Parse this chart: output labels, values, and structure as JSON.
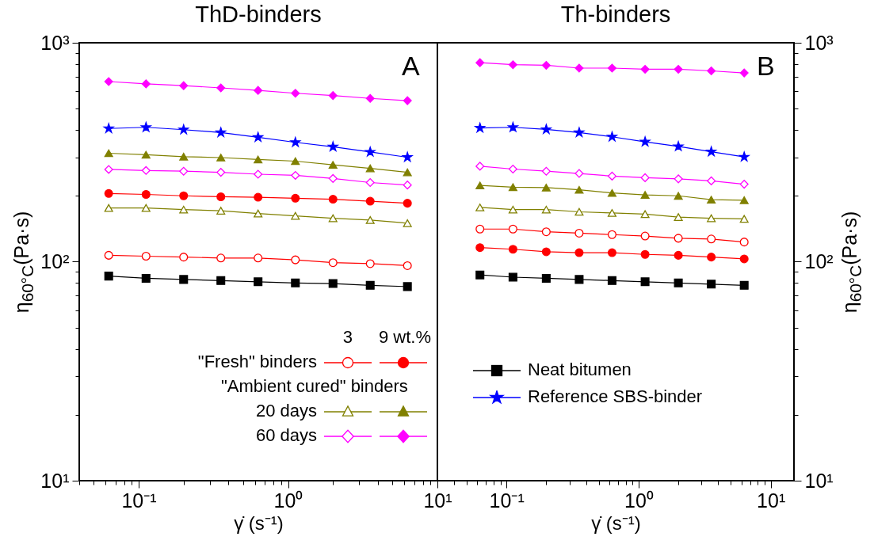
{
  "chart_data": [
    {
      "type": "line",
      "title": "ThD-binders",
      "xlabel": "γ̇ (s⁻¹)",
      "ylabel": "η$_{60°C}$(Pa·s)",
      "log": "xy",
      "legend": "bottom right",
      "annotations": [
        "A",
        "3",
        "9 wt.%",
        "\"Fresh\" binders",
        "\"Ambient cured\" binders",
        "20 days",
        "60 days"
      ],
      "x": [
        0.063,
        0.112,
        0.2,
        0.355,
        0.63,
        1.12,
        2,
        3.55,
        6.3
      ],
      "xlim": [
        0.04,
        10
      ],
      "xticks": [
        {
          "value": 0.04,
          "label": null
        },
        {
          "value": 0.05,
          "label": null
        },
        {
          "value": 0.06,
          "label": null
        },
        {
          "value": 0.07,
          "label": null
        },
        {
          "value": 0.08,
          "label": null
        },
        {
          "value": 0.09,
          "label": null
        },
        {
          "value": 0.1,
          "label": "10⁻¹"
        },
        {
          "value": 0.2,
          "label": null
        },
        {
          "value": 0.3,
          "label": null
        },
        {
          "value": 0.4,
          "label": null
        },
        {
          "value": 0.5,
          "label": null
        },
        {
          "value": 0.6,
          "label": null
        },
        {
          "value": 0.7,
          "label": null
        },
        {
          "value": 0.8,
          "label": null
        },
        {
          "value": 0.9,
          "label": null
        },
        {
          "value": 1,
          "label": "10⁰"
        },
        {
          "value": 2,
          "label": null
        },
        {
          "value": 3,
          "label": null
        },
        {
          "value": 4,
          "label": null
        },
        {
          "value": 5,
          "label": null
        },
        {
          "value": 6,
          "label": null
        },
        {
          "value": 7,
          "label": null
        },
        {
          "value": 8,
          "label": null
        },
        {
          "value": 9,
          "label": null
        },
        {
          "value": 10,
          "label": "10¹"
        }
      ],
      "ylim": [
        10,
        1000
      ],
      "yticks": [
        {
          "value": 10,
          "label": "10¹"
        },
        {
          "value": 20,
          "label": null
        },
        {
          "value": 30,
          "label": null
        },
        {
          "value": 40,
          "label": null
        },
        {
          "value": 50,
          "label": null
        },
        {
          "value": 60,
          "label": null
        },
        {
          "value": 70,
          "label": null
        },
        {
          "value": 80,
          "label": null
        },
        {
          "value": 90,
          "label": null
        },
        {
          "value": 100,
          "label": "10²"
        },
        {
          "value": 200,
          "label": null
        },
        {
          "value": 300,
          "label": null
        },
        {
          "value": 400,
          "label": null
        },
        {
          "value": 500,
          "label": null
        },
        {
          "value": 600,
          "label": null
        },
        {
          "value": 700,
          "label": null
        },
        {
          "value": 800,
          "label": null
        },
        {
          "value": 900,
          "label": null
        },
        {
          "value": 1000,
          "label": "10³"
        }
      ],
      "series": [
        {
          "color": "#ff0000",
          "marker": "circle",
          "values": [
            107,
            106,
            105,
            104,
            104,
            102,
            99,
            98,
            96
          ]
        },
        {
          "color": "#ff0000",
          "marker": "circle",
          "values": [
            205,
            203,
            200,
            198,
            197,
            195,
            193,
            189,
            185
          ]
        },
        {
          "color": "#808000",
          "marker": "triangle",
          "values": [
            176,
            176,
            173,
            171,
            166,
            162,
            158,
            155,
            150
          ]
        },
        {
          "color": "#808000",
          "marker": "triangle",
          "values": [
            313,
            308,
            302,
            299,
            293,
            288,
            277,
            267,
            256
          ]
        },
        {
          "color": "#ff00ff",
          "marker": "diamond",
          "values": [
            264,
            261,
            259,
            256,
            251,
            248,
            240,
            230,
            224
          ]
        },
        {
          "color": "#ff00ff",
          "marker": "diamond",
          "values": [
            665,
            649,
            637,
            622,
            606,
            588,
            574,
            557,
            544
          ]
        },
        {
          "color": "#000000",
          "marker": "square",
          "values": [
            86,
            84,
            83,
            82,
            81,
            80,
            79.5,
            78,
            77
          ]
        },
        {
          "color": "#0000ff",
          "marker": "star",
          "values": [
            406,
            411,
            401,
            389,
            370,
            351,
            335,
            317,
            300
          ]
        }
      ]
    },
    {
      "type": "line",
      "title": "Th-binders",
      "xlabel": "γ̇ (s⁻¹)",
      "ylabel": "η$_{60°C}$(Pa·s)",
      "log": "xy",
      "legend": "bottom left",
      "annotations": [
        "B"
      ],
      "x": [
        0.063,
        0.112,
        0.2,
        0.355,
        0.63,
        1.12,
        2,
        3.55,
        6.3
      ],
      "xlim": [
        0.03,
        15
      ],
      "xticks": [
        {
          "value": 0.04,
          "label": null
        },
        {
          "value": 0.05,
          "label": null
        },
        {
          "value": 0.06,
          "label": null
        },
        {
          "value": 0.07,
          "label": null
        },
        {
          "value": 0.08,
          "label": null
        },
        {
          "value": 0.09,
          "label": null
        },
        {
          "value": 0.1,
          "label": "10⁻¹"
        },
        {
          "value": 0.2,
          "label": null
        },
        {
          "value": 0.3,
          "label": null
        },
        {
          "value": 0.4,
          "label": null
        },
        {
          "value": 0.5,
          "label": null
        },
        {
          "value": 0.6,
          "label": null
        },
        {
          "value": 0.7,
          "label": null
        },
        {
          "value": 0.8,
          "label": null
        },
        {
          "value": 0.9,
          "label": null
        },
        {
          "value": 1,
          "label": "10⁰"
        },
        {
          "value": 2,
          "label": null
        },
        {
          "value": 3,
          "label": null
        },
        {
          "value": 4,
          "label": null
        },
        {
          "value": 5,
          "label": null
        },
        {
          "value": 6,
          "label": null
        },
        {
          "value": 7,
          "label": null
        },
        {
          "value": 8,
          "label": null
        },
        {
          "value": 9,
          "label": null
        },
        {
          "value": 10,
          "label": "10¹"
        }
      ],
      "ylim": [
        10,
        1000
      ],
      "yticks": [
        {
          "value": 10,
          "label": "10¹"
        },
        {
          "value": 20,
          "label": null
        },
        {
          "value": 30,
          "label": null
        },
        {
          "value": 40,
          "label": null
        },
        {
          "value": 50,
          "label": null
        },
        {
          "value": 60,
          "label": null
        },
        {
          "value": 70,
          "label": null
        },
        {
          "value": 80,
          "label": null
        },
        {
          "value": 90,
          "label": null
        },
        {
          "value": 100,
          "label": "10²"
        },
        {
          "value": 200,
          "label": null
        },
        {
          "value": 300,
          "label": null
        },
        {
          "value": 400,
          "label": null
        },
        {
          "value": 500,
          "label": null
        },
        {
          "value": 600,
          "label": null
        },
        {
          "value": 700,
          "label": null
        },
        {
          "value": 800,
          "label": null
        },
        {
          "value": 900,
          "label": null
        },
        {
          "value": 1000,
          "label": "10³"
        }
      ],
      "series": [
        {
          "color": "#ff0000",
          "marker": "circle",
          "values": [
            141,
            141,
            137,
            135,
            133,
            131,
            128,
            127,
            123
          ]
        },
        {
          "color": "#ff0000",
          "marker": "circle",
          "values": [
            116,
            114,
            111,
            110,
            110,
            108,
            107,
            105,
            103
          ]
        },
        {
          "color": "#808000",
          "marker": "triangle",
          "values": [
            177,
            173,
            173,
            169,
            167,
            165,
            160,
            158,
            157
          ]
        },
        {
          "color": "#808000",
          "marker": "triangle",
          "values": [
            223,
            219,
            218,
            213,
            206,
            202,
            200,
            192,
            191
          ]
        },
        {
          "color": "#ff00ff",
          "marker": "diamond",
          "values": [
            273,
            265,
            259,
            253,
            246,
            242,
            239,
            234,
            226
          ]
        },
        {
          "color": "#ff00ff",
          "marker": "diamond",
          "values": [
            811,
            794,
            789,
            766,
            766,
            757,
            757,
            744,
            728
          ]
        },
        {
          "name": "Neat bitumen",
          "color": "#000000",
          "marker": "square",
          "values": [
            87,
            85,
            84,
            83,
            82,
            81,
            80,
            79,
            78
          ]
        },
        {
          "name": "Reference SBS-binder",
          "color": "#0000ff",
          "marker": "star",
          "values": [
            408,
            411,
            402,
            389,
            372,
            353,
            336,
            318,
            301
          ]
        }
      ]
    }
  ]
}
